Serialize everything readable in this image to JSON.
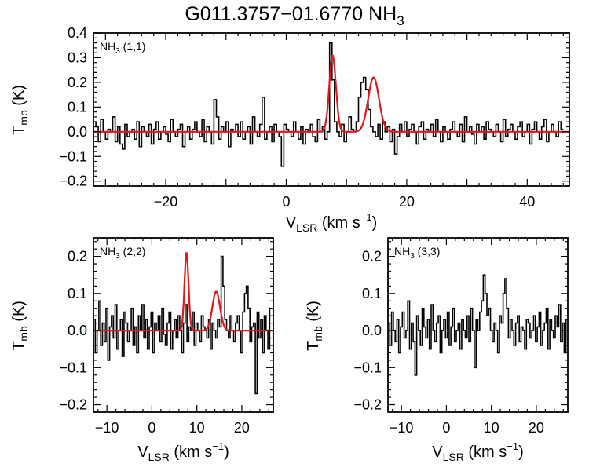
{
  "title": {
    "main": "G011.3757−01.6770 NH",
    "sub": "3"
  },
  "colors": {
    "spectrum": "#000000",
    "fit": "#e8141c",
    "axes": "#000000"
  },
  "axis_text": {
    "x_main": "V",
    "x_sub": "LSR",
    "x_unit": " (km s",
    "x_sup": "−1",
    "x_close": ")",
    "y_main": "T",
    "y_sub": "mb",
    "y_unit": " (K)"
  },
  "chart_data": [
    {
      "type": "line",
      "panel": "NH3 (1,1)",
      "label_main": "NH",
      "label_sub": "3",
      "label_rest": " (1,1)",
      "xlim": [
        -32,
        47
      ],
      "ylim": [
        -0.22,
        0.4
      ],
      "xticks": [
        -20,
        0,
        20,
        40
      ],
      "yticks": [
        0.4,
        0.3,
        0.2,
        0.1,
        0.0,
        -0.1,
        -0.2
      ],
      "series": [
        {
          "name": "spectrum",
          "x_start": -32,
          "x_step": 0.4,
          "values": [
            0.04,
            0.02,
            -0.04,
            0.05,
            0.0,
            -0.03,
            0.01,
            0.0,
            0.06,
            -0.04,
            0.02,
            -0.05,
            -0.07,
            0.03,
            -0.02,
            0.0,
            0.01,
            -0.03,
            0.04,
            -0.06,
            0.02,
            0.0,
            -0.02,
            0.03,
            -0.05,
            0.01,
            0.04,
            -0.03,
            0.0,
            0.02,
            -0.01,
            -0.04,
            0.05,
            0.0,
            -0.02,
            0.01,
            0.03,
            -0.06,
            0.0,
            0.02,
            -0.03,
            0.01,
            0.04,
            0.0,
            -0.02,
            0.05,
            -0.04,
            0.02,
            0.0,
            -0.05,
            0.13,
            0.06,
            -0.03,
            0.02,
            0.0,
            0.04,
            -0.06,
            0.01,
            0.0,
            0.03,
            -0.02,
            0.04,
            -0.03,
            0.0,
            0.02,
            -0.05,
            0.06,
            0.0,
            -0.02,
            0.03,
            0.14,
            -0.03,
            0.0,
            0.02,
            -0.04,
            0.03,
            0.0,
            -0.02,
            -0.14,
            0.03,
            0.01,
            0.0,
            -0.02,
            0.04,
            0.0,
            -0.03,
            0.02,
            -0.05,
            0.01,
            0.0,
            0.03,
            -0.02,
            -0.04,
            0.05,
            0.0,
            0.02,
            -0.03,
            0.0,
            0.36,
            0.21,
            0.04,
            0.0,
            -0.02,
            0.03,
            -0.04,
            0.0,
            0.06,
            0.01,
            0.0,
            0.04,
            0.14,
            0.2,
            0.22,
            0.17,
            0.09,
            0.02,
            0.0,
            -0.02,
            0.03,
            -0.03,
            0.04,
            0.0,
            0.02,
            -0.04,
            0.01,
            -0.09,
            -0.02,
            0.03,
            0.0,
            0.04,
            -0.02,
            0.01,
            0.03,
            0.0,
            -0.05,
            0.02,
            0.04,
            -0.03,
            0.01,
            0.0,
            0.03,
            -0.02,
            0.05,
            0.0,
            -0.04,
            0.02,
            0.0,
            -0.03,
            0.01,
            0.04,
            0.0,
            -0.02,
            0.03,
            -0.04,
            0.06,
            0.0,
            0.02,
            -0.01,
            -0.05,
            0.03,
            0.0,
            0.02,
            -0.03,
            0.04,
            0.01,
            0.0,
            -0.02,
            0.03,
            0.0,
            -0.04,
            0.05,
            -0.02,
            0.01,
            0.03,
            0.0,
            -0.03,
            0.02,
            0.04,
            -0.02,
            0.0,
            0.03,
            -0.05,
            0.01,
            0.04,
            0.0,
            -0.03,
            0.02,
            0.05,
            -0.04,
            0.0,
            0.03,
            0.0,
            -0.02,
            0.04,
            0.01
          ]
        },
        {
          "name": "fit",
          "lines": [
            {
              "center": 7.7,
              "amp": 0.31,
              "sigma": 0.55
            },
            {
              "center": 14.5,
              "amp": 0.22,
              "sigma": 0.9
            }
          ]
        }
      ]
    },
    {
      "type": "line",
      "panel": "NH3 (2,2)",
      "label_main": "NH",
      "label_sub": "3",
      "label_rest": " (2,2)",
      "xlim": [
        -13,
        27
      ],
      "ylim": [
        -0.22,
        0.25
      ],
      "xticks": [
        -10,
        0,
        10,
        20
      ],
      "yticks": [
        0.2,
        0.1,
        0.0,
        -0.1,
        -0.2
      ],
      "series": [
        {
          "name": "spectrum",
          "x_start": -13,
          "x_step": 0.4,
          "values": [
            0.03,
            -0.06,
            0.0,
            0.08,
            -0.04,
            0.02,
            -0.03,
            0.06,
            -0.08,
            0.01,
            0.04,
            -0.02,
            0.07,
            -0.05,
            0.0,
            0.03,
            -0.07,
            0.05,
            0.02,
            -0.03,
            0.0,
            0.06,
            -0.04,
            0.01,
            -0.06,
            0.04,
            0.0,
            0.07,
            -0.02,
            0.03,
            -0.05,
            0.01,
            0.05,
            -0.06,
            0.02,
            0.0,
            0.04,
            -0.03,
            0.06,
            -0.01,
            -0.04,
            0.02,
            0.05,
            -0.05,
            0.0,
            0.03,
            -0.02,
            0.04,
            0.0,
            -0.06,
            0.02,
            0.07,
            -0.03,
            0.01,
            0.0,
            0.05,
            -0.04,
            0.02,
            0.0,
            -0.03,
            0.04,
            0.01,
            0.0,
            -0.02,
            0.03,
            -0.05,
            0.02,
            0.0,
            -0.02,
            0.03,
            0.01,
            0.2,
            0.12,
            0.03,
            0.0,
            -0.02,
            0.04,
            0.0,
            -0.03,
            0.02,
            0.04,
            0.0,
            -0.06,
            0.05,
            0.1,
            0.12,
            0.06,
            -0.03,
            0.01,
            0.02,
            -0.17,
            0.05,
            -0.02,
            0.03,
            -0.06,
            0.04,
            0.0,
            -0.05,
            0.06
          ]
        },
        {
          "name": "fit",
          "lines": [
            {
              "center": 7.7,
              "amp": 0.21,
              "sigma": 0.45
            },
            {
              "center": 14.3,
              "amp": 0.105,
              "sigma": 0.85
            }
          ]
        }
      ]
    },
    {
      "type": "line",
      "panel": "NH3 (3,3)",
      "label_main": "NH",
      "label_sub": "3",
      "label_rest": " (3,3)",
      "xlim": [
        -13,
        27
      ],
      "ylim": [
        -0.22,
        0.25
      ],
      "xticks": [
        -10,
        0,
        10,
        20
      ],
      "yticks": [
        0.2,
        0.1,
        0.0,
        -0.1,
        -0.2
      ],
      "series": [
        {
          "name": "spectrum",
          "x_start": -13,
          "x_step": 0.4,
          "values": [
            0.02,
            -0.04,
            0.05,
            0.0,
            -0.03,
            0.03,
            -0.06,
            0.01,
            0.05,
            -0.02,
            0.0,
            0.08,
            -0.05,
            0.02,
            -0.03,
            -0.12,
            0.04,
            0.0,
            -0.04,
            0.06,
            0.01,
            -0.02,
            0.03,
            -0.05,
            0.07,
            0.0,
            -0.03,
            0.02,
            0.04,
            -0.06,
            0.0,
            0.03,
            -0.02,
            0.05,
            -0.04,
            0.01,
            0.06,
            -0.03,
            0.0,
            0.02,
            -0.05,
            0.03,
            0.0,
            -0.02,
            0.04,
            -0.03,
            0.06,
            0.0,
            -0.1,
            0.03,
            0.0,
            0.05,
            0.08,
            0.15,
            0.1,
            0.04,
            0.06,
            0.0,
            -0.03,
            0.02,
            0.0,
            -0.06,
            0.04,
            0.02,
            0.1,
            0.14,
            0.06,
            -0.02,
            0.03,
            0.0,
            -0.04,
            0.02,
            0.04,
            -0.03,
            0.01,
            0.0,
            -0.05,
            0.03,
            0.02,
            -0.02,
            0.0,
            0.04,
            -0.03,
            0.01,
            0.05,
            -0.04,
            0.0,
            0.02,
            0.06,
            -0.05,
            0.03,
            0.0,
            -0.02,
            0.04,
            0.01,
            0.07,
            -0.03,
            0.02,
            -0.06,
            0.03
          ]
        }
      ]
    }
  ]
}
